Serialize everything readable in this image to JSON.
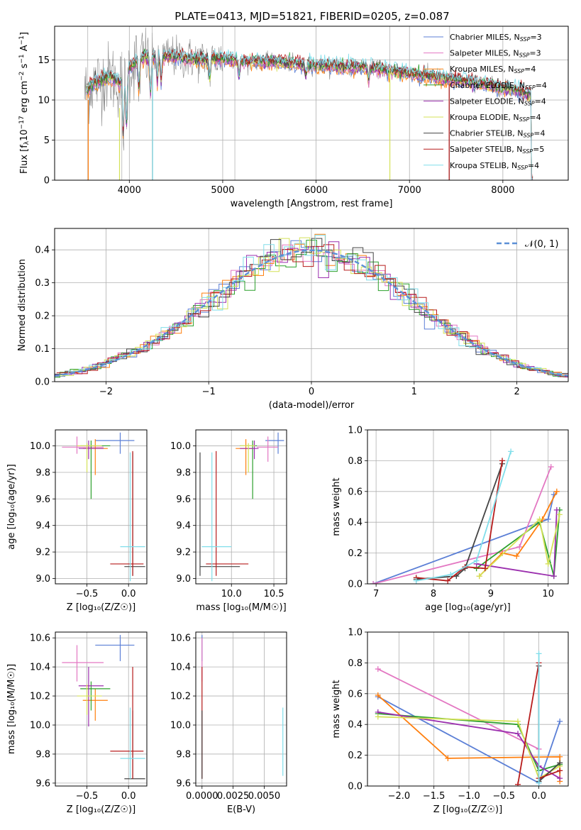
{
  "chart_data": [
    {
      "type": "line",
      "id": "spectrum",
      "title": "PLATE=0413, MJD=51821, FIBERID=0205, z=0.087",
      "xlabel": "wavelength [Angstrom, rest frame]",
      "ylabel_parts": [
        "Flux [f",
        "λ",
        "10",
        "−17",
        " erg cm",
        "−2",
        " s",
        "−1",
        " A",
        "−1",
        "]"
      ],
      "xlim": [
        3200,
        8700
      ],
      "ylim": [
        0,
        19.2
      ],
      "xticks": [
        4000,
        5000,
        6000,
        7000,
        8000
      ],
      "yticks": [
        0,
        5,
        10,
        15
      ],
      "legend_loc": "upper right",
      "legend": [
        {
          "pre": "Chabrier MILES, N",
          "sub": "SSP",
          "post": "=3",
          "color": "#5b7fd6"
        },
        {
          "pre": "Salpeter MILES, N",
          "sub": "SSP",
          "post": "=3",
          "color": "#e377c2"
        },
        {
          "pre": "Kroupa MILES, N",
          "sub": "SSP",
          "post": "=4",
          "color": "#ff7f0e"
        },
        {
          "pre": "Chabrier ELODIE, N",
          "sub": "SSP",
          "post": "=4",
          "color": "#2ca02c"
        },
        {
          "pre": "Salpeter ELODIE, N",
          "sub": "SSP",
          "post": "=4",
          "color": "#9b2fae"
        },
        {
          "pre": "Kroupa ELODIE, N",
          "sub": "SSP",
          "post": "=4",
          "color": "#d4e157"
        },
        {
          "pre": "Chabrier STELIB, N",
          "sub": "SSP",
          "post": "=4",
          "color": "#444444"
        },
        {
          "pre": "Salpeter STELIB, N",
          "sub": "SSP",
          "post": "=5",
          "color": "#b71c1c"
        },
        {
          "pre": "Kroupa STELIB, N",
          "sub": "SSP",
          "post": "=4",
          "color": "#80deea"
        }
      ],
      "continuum": [
        [
          3500,
          10.5
        ],
        [
          3600,
          12
        ],
        [
          3700,
          12.5
        ],
        [
          3800,
          13
        ],
        [
          3900,
          12
        ],
        [
          4000,
          14
        ],
        [
          4100,
          15
        ],
        [
          4200,
          15.5
        ],
        [
          4400,
          15.5
        ],
        [
          4600,
          15.2
        ],
        [
          4800,
          15
        ],
        [
          5000,
          15.2
        ],
        [
          5200,
          14.8
        ],
        [
          5500,
          14.8
        ],
        [
          5800,
          14.5
        ],
        [
          6000,
          14.3
        ],
        [
          6300,
          14.2
        ],
        [
          6600,
          14
        ],
        [
          6900,
          13.5
        ],
        [
          7200,
          13
        ],
        [
          7500,
          12.5
        ],
        [
          7800,
          12
        ],
        [
          8100,
          11.3
        ],
        [
          8300,
          10.7
        ]
      ]
    },
    {
      "type": "step",
      "id": "residuals",
      "xlabel": "(data-model)/error",
      "ylabel": "Normed distribution",
      "xlim": [
        -2.5,
        2.5
      ],
      "ylim": [
        0,
        0.465
      ],
      "xticks": [
        -2,
        -1,
        0,
        1,
        2
      ],
      "yticks": [
        0.0,
        0.1,
        0.2,
        0.3,
        0.4
      ],
      "legend": [
        {
          "label": "𝒩(0, 1)",
          "color": "#5b8fd6",
          "style": "dashed"
        }
      ]
    },
    {
      "type": "errorbar",
      "id": "age-vs-Z",
      "xlabel": "Z [log₁₀(Z/Z☉)]",
      "ylabel": "age  [log₁₀(age/yr)]",
      "xlim": [
        -0.88,
        0.22
      ],
      "ylim": [
        8.96,
        10.12
      ],
      "xticks": [
        -0.5,
        0.0
      ],
      "yticks": [
        9.0,
        9.2,
        9.4,
        9.6,
        9.8,
        10.0
      ],
      "points": [
        {
          "c": "#5b7fd6",
          "x": -0.1,
          "xe": [
            -0.4,
            0.07
          ],
          "y": 10.04,
          "ye": [
            9.94,
            10.1
          ]
        },
        {
          "c": "#e377c2",
          "x": -0.62,
          "xe": [
            -0.8,
            -0.3
          ],
          "y": 9.99,
          "ye": [
            9.94,
            10.07
          ]
        },
        {
          "c": "#ff7f0e",
          "x": -0.4,
          "xe": [
            -0.55,
            -0.25
          ],
          "y": 9.98,
          "ye": [
            9.78,
            10.05
          ]
        },
        {
          "c": "#2ca02c",
          "x": -0.45,
          "xe": [
            -0.58,
            -0.22
          ],
          "y": 10.0,
          "ye": [
            9.6,
            10.04
          ]
        },
        {
          "c": "#9b2fae",
          "x": -0.48,
          "xe": [
            -0.6,
            -0.3
          ],
          "y": 9.98,
          "ye": [
            9.9,
            10.04
          ]
        },
        {
          "c": "#d4e157",
          "x": -0.5,
          "xe": [
            -0.62,
            -0.32
          ],
          "y": 10.0,
          "ye": [
            9.8,
            10.02
          ]
        },
        {
          "c": "#444444",
          "x": 0.05,
          "xe": [
            -0.05,
            0.2
          ],
          "y": 9.09,
          "ye": [
            9.02,
            9.95
          ]
        },
        {
          "c": "#b71c1c",
          "x": 0.05,
          "xe": [
            -0.22,
            0.18
          ],
          "y": 9.11,
          "ye": [
            9.02,
            9.96
          ]
        },
        {
          "c": "#80deea",
          "x": 0.02,
          "xe": [
            -0.1,
            0.2
          ],
          "y": 9.24,
          "ye": [
            8.98,
            9.95
          ]
        }
      ]
    },
    {
      "type": "errorbar",
      "id": "age-vs-mass",
      "xlabel": "mass [log₁₀(M/M☉)]",
      "xlim": [
        9.58,
        10.65
      ],
      "ylim": [
        8.96,
        10.12
      ],
      "xticks": [
        10.0,
        10.5
      ],
      "yticks": [
        9.0,
        9.2,
        9.4,
        9.6,
        9.8,
        10.0
      ],
      "points": [
        {
          "c": "#5b7fd6",
          "x": 10.55,
          "xe": [
            10.4,
            10.62
          ],
          "y": 10.04,
          "ye": [
            9.94,
            10.1
          ]
        },
        {
          "c": "#e377c2",
          "x": 10.43,
          "xe": [
            10.3,
            10.55
          ],
          "y": 9.99,
          "ye": [
            9.88,
            10.07
          ]
        },
        {
          "c": "#ff7f0e",
          "x": 10.17,
          "xe": [
            10.05,
            10.25
          ],
          "y": 9.98,
          "ye": [
            9.78,
            10.05
          ]
        },
        {
          "c": "#2ca02c",
          "x": 10.25,
          "xe": [
            10.1,
            10.3
          ],
          "y": 10.0,
          "ye": [
            9.6,
            10.04
          ]
        },
        {
          "c": "#9b2fae",
          "x": 10.27,
          "xe": [
            10.1,
            10.32
          ],
          "y": 9.98,
          "ye": [
            9.9,
            10.04
          ]
        },
        {
          "c": "#d4e157",
          "x": 10.2,
          "xe": [
            10.1,
            10.28
          ],
          "y": 10.0,
          "ye": [
            9.8,
            10.02
          ]
        },
        {
          "c": "#444444",
          "x": 9.63,
          "xe": [
            9.63,
            10.1
          ],
          "y": 9.09,
          "ye": [
            9.02,
            9.95
          ]
        },
        {
          "c": "#b71c1c",
          "x": 9.82,
          "xe": [
            9.7,
            10.2
          ],
          "y": 9.11,
          "ye": [
            9.02,
            9.96
          ]
        },
        {
          "c": "#80deea",
          "x": 9.77,
          "xe": [
            9.65,
            10.0
          ],
          "y": 9.24,
          "ye": [
            8.98,
            9.95
          ]
        }
      ]
    },
    {
      "type": "line",
      "id": "massweight-vs-age",
      "xlabel": "age  [log₁₀(age/yr)]",
      "ylabel": "mass weight",
      "xlim": [
        6.85,
        10.35
      ],
      "ylim": [
        0,
        1
      ],
      "xticks": [
        7,
        8,
        9,
        10
      ],
      "yticks": [
        0.0,
        0.2,
        0.4,
        0.6,
        0.8,
        1.0
      ],
      "series": [
        {
          "c": "#5b7fd6",
          "pts": [
            [
              6.95,
              0.0
            ],
            [
              10.0,
              0.42
            ],
            [
              10.1,
              0.58
            ]
          ]
        },
        {
          "c": "#e377c2",
          "pts": [
            [
              6.95,
              0.0
            ],
            [
              9.5,
              0.24
            ],
            [
              10.05,
              0.76
            ]
          ]
        },
        {
          "c": "#ff7f0e",
          "pts": [
            [
              8.8,
              0.05
            ],
            [
              9.2,
              0.2
            ],
            [
              9.45,
              0.18
            ],
            [
              9.9,
              0.42
            ],
            [
              10.15,
              0.6
            ]
          ]
        },
        {
          "c": "#2ca02c",
          "pts": [
            [
              8.75,
              0.1
            ],
            [
              9.85,
              0.4
            ],
            [
              10.1,
              0.05
            ],
            [
              10.2,
              0.48
            ]
          ]
        },
        {
          "c": "#9b2fae",
          "pts": [
            [
              8.75,
              0.13
            ],
            [
              10.1,
              0.05
            ],
            [
              10.15,
              0.48
            ]
          ]
        },
        {
          "c": "#d4e157",
          "pts": [
            [
              8.8,
              0.05
            ],
            [
              9.85,
              0.42
            ],
            [
              10.0,
              0.13
            ],
            [
              10.2,
              0.45
            ]
          ]
        },
        {
          "c": "#444444",
          "pts": [
            [
              7.7,
              0.03
            ],
            [
              8.4,
              0.05
            ],
            [
              8.55,
              0.1
            ],
            [
              9.2,
              0.78
            ]
          ]
        },
        {
          "c": "#b71c1c",
          "pts": [
            [
              7.7,
              0.04
            ],
            [
              8.25,
              0.02
            ],
            [
              8.55,
              0.11
            ],
            [
              8.9,
              0.1
            ],
            [
              9.2,
              0.8
            ]
          ]
        },
        {
          "c": "#80deea",
          "pts": [
            [
              7.7,
              0.02
            ],
            [
              8.3,
              0.06
            ],
            [
              8.75,
              0.15
            ],
            [
              9.35,
              0.86
            ]
          ]
        }
      ]
    },
    {
      "type": "errorbar",
      "id": "mass-vs-Z",
      "xlabel": "Z [log₁₀(Z/Z☉)]",
      "ylabel": "mass [log₁₀(M/M☉)]",
      "xlim": [
        -0.88,
        0.22
      ],
      "ylim": [
        9.58,
        10.64
      ],
      "xticks": [
        -0.5,
        0.0
      ],
      "yticks": [
        9.6,
        9.8,
        10.0,
        10.2,
        10.4,
        10.6
      ],
      "points": [
        {
          "c": "#5b7fd6",
          "x": -0.1,
          "xe": [
            -0.4,
            0.07
          ],
          "y": 10.55,
          "ye": [
            10.44,
            10.62
          ]
        },
        {
          "c": "#e377c2",
          "x": -0.62,
          "xe": [
            -0.8,
            -0.3
          ],
          "y": 10.43,
          "ye": [
            10.3,
            10.55
          ]
        },
        {
          "c": "#ff7f0e",
          "x": -0.4,
          "xe": [
            -0.55,
            -0.25
          ],
          "y": 10.17,
          "ye": [
            10.03,
            10.25
          ]
        },
        {
          "c": "#2ca02c",
          "x": -0.45,
          "xe": [
            -0.58,
            -0.22
          ],
          "y": 10.25,
          "ye": [
            10.1,
            10.3
          ]
        },
        {
          "c": "#9b2fae",
          "x": -0.48,
          "xe": [
            -0.6,
            -0.3
          ],
          "y": 10.27,
          "ye": [
            9.99,
            10.4
          ]
        },
        {
          "c": "#d4e157",
          "x": -0.5,
          "xe": [
            -0.62,
            -0.32
          ],
          "y": 10.2,
          "ye": [
            10.07,
            10.28
          ]
        },
        {
          "c": "#444444",
          "x": 0.05,
          "xe": [
            -0.05,
            0.2
          ],
          "y": 9.63,
          "ye": [
            9.63,
            10.1
          ]
        },
        {
          "c": "#b71c1c",
          "x": 0.05,
          "xe": [
            -0.22,
            0.18
          ],
          "y": 9.82,
          "ye": [
            9.63,
            10.4
          ]
        },
        {
          "c": "#80deea",
          "x": 0.02,
          "xe": [
            -0.1,
            0.2
          ],
          "y": 9.77,
          "ye": [
            9.63,
            10.12
          ]
        }
      ]
    },
    {
      "type": "errorbar",
      "id": "mass-vs-EBV",
      "xlabel": "E(B-V)",
      "xlim": [
        -0.0005,
        0.0068
      ],
      "ylim": [
        9.58,
        10.64
      ],
      "xticks": [
        0.0,
        0.0025,
        0.005
      ],
      "xtick_labels": [
        "0.0000",
        "0.0025",
        "0.0050"
      ],
      "yticks": [
        9.6,
        9.8,
        10.0,
        10.2,
        10.4,
        10.6
      ],
      "points": [
        {
          "c": "#5b7fd6",
          "x": 0.0,
          "y": 10.55,
          "ye": [
            10.44,
            10.62
          ]
        },
        {
          "c": "#e377c2",
          "x": 0.0,
          "y": 10.43,
          "ye": [
            10.3,
            10.6
          ]
        },
        {
          "c": "#b71c1c",
          "x": 0.0,
          "y": 9.82,
          "ye": [
            9.63,
            10.4
          ]
        },
        {
          "c": "#444444",
          "x": 0.0,
          "y": 9.63,
          "ye": [
            9.63,
            10.1
          ]
        },
        {
          "c": "#80deea",
          "x": 0.0065,
          "y": 9.77,
          "ye": [
            9.65,
            10.12
          ]
        }
      ]
    },
    {
      "type": "line",
      "id": "massweight-vs-Z",
      "xlabel": "Z [log₁₀(Z/Z☉)]",
      "ylabel": "mass weight",
      "xlim": [
        -2.45,
        0.42
      ],
      "ylim": [
        0,
        1
      ],
      "xticks": [
        -2.0,
        -1.5,
        -1.0,
        -0.5,
        0.0
      ],
      "yticks": [
        0.0,
        0.2,
        0.4,
        0.6,
        0.8,
        1.0
      ],
      "series": [
        {
          "c": "#5b7fd6",
          "pts": [
            [
              -2.3,
              0.58
            ],
            [
              0.0,
              0.02
            ],
            [
              0.3,
              0.42
            ]
          ]
        },
        {
          "c": "#e377c2",
          "pts": [
            [
              -2.3,
              0.76
            ],
            [
              0.0,
              0.24
            ]
          ]
        },
        {
          "c": "#ff7f0e",
          "pts": [
            [
              -2.3,
              0.59
            ],
            [
              -1.3,
              0.18
            ],
            [
              0.3,
              0.19
            ],
            [
              0.3,
              0.03
            ]
          ]
        },
        {
          "c": "#2ca02c",
          "pts": [
            [
              -2.3,
              0.47
            ],
            [
              -0.3,
              0.4
            ],
            [
              0.0,
              0.1
            ],
            [
              0.3,
              0.14
            ]
          ]
        },
        {
          "c": "#9b2fae",
          "pts": [
            [
              -2.3,
              0.48
            ],
            [
              -0.3,
              0.34
            ],
            [
              0.0,
              0.13
            ],
            [
              0.3,
              0.05
            ]
          ]
        },
        {
          "c": "#d4e157",
          "pts": [
            [
              -2.3,
              0.45
            ],
            [
              -0.3,
              0.42
            ],
            [
              0.0,
              0.05
            ],
            [
              0.3,
              0.13
            ]
          ]
        },
        {
          "c": "#444444",
          "pts": [
            [
              0.0,
              0.78
            ],
            [
              0.0,
              0.03
            ],
            [
              0.3,
              0.15
            ]
          ]
        },
        {
          "c": "#b71c1c",
          "pts": [
            [
              -0.3,
              0.01
            ],
            [
              0.0,
              0.8
            ],
            [
              0.0,
              0.05
            ],
            [
              0.3,
              0.1
            ]
          ]
        },
        {
          "c": "#80deea",
          "pts": [
            [
              0.0,
              0.86
            ],
            [
              0.0,
              0.02
            ]
          ]
        }
      ]
    }
  ]
}
